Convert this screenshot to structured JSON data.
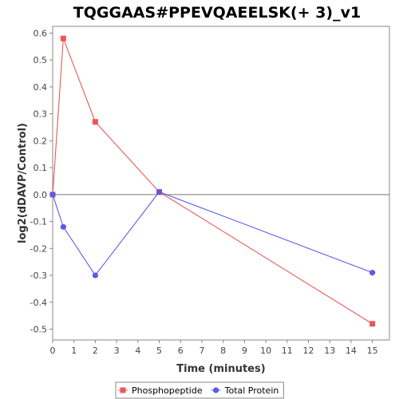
{
  "chart_data": {
    "type": "line",
    "title": "TQGGAAS#PPEVQAEELSK(+ 3)_v1",
    "xlabel": "Time (minutes)",
    "ylabel": "log2(dDAVP/Control)",
    "xlim": [
      0,
      15.8
    ],
    "ylim": [
      -0.54,
      0.625
    ],
    "xticks": [
      0,
      1,
      2,
      3,
      4,
      5,
      6,
      7,
      8,
      9,
      10,
      11,
      12,
      13,
      14,
      15
    ],
    "xtick_labels": [
      "0",
      "1",
      "2",
      "3",
      "4",
      "5",
      "6",
      "7",
      "8",
      "9",
      "10",
      "11",
      "12",
      "13",
      "14",
      "15"
    ],
    "yticks": [
      0.6,
      0.5,
      0.4,
      0.3,
      0.2,
      0.1,
      0.0,
      -0.1,
      -0.2,
      -0.3,
      -0.4,
      -0.5
    ],
    "ytick_labels": [
      "0.6",
      "0.5",
      "0.4",
      "0.3",
      "0.2",
      "0.1",
      "0.0",
      "-0.1",
      "-0.2",
      "-0.3",
      "-0.4",
      "-0.5"
    ],
    "grid": false,
    "zero_line": true,
    "legend_position": "bottom-center",
    "series": [
      {
        "name": "Phosphopeptide",
        "color": "#e8585a",
        "marker": "square",
        "x": [
          0,
          0.5,
          2,
          5,
          15
        ],
        "y": [
          0.0,
          0.58,
          0.27,
          0.01,
          -0.48
        ]
      },
      {
        "name": "Total Protein",
        "color": "#5b5be8",
        "marker": "circle",
        "x": [
          0,
          0.5,
          2,
          5,
          15
        ],
        "y": [
          0.0,
          -0.12,
          -0.3,
          0.01,
          -0.29
        ]
      }
    ]
  }
}
